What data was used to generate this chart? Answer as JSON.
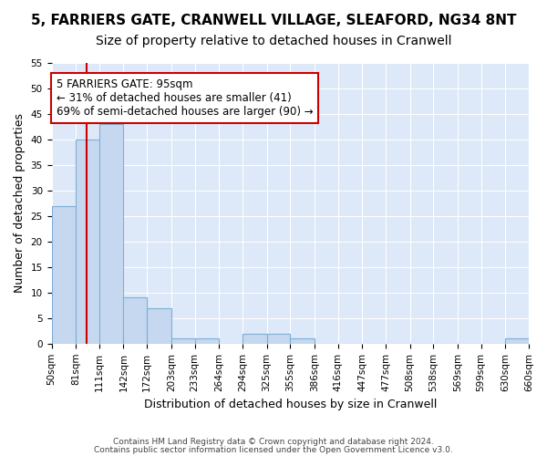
{
  "title1": "5, FARRIERS GATE, CRANWELL VILLAGE, SLEAFORD, NG34 8NT",
  "title2": "Size of property relative to detached houses in Cranwell",
  "xlabel": "Distribution of detached houses by size in Cranwell",
  "ylabel": "Number of detached properties",
  "footer1": "Contains HM Land Registry data © Crown copyright and database right 2024.",
  "footer2": "Contains public sector information licensed under the Open Government Licence v3.0.",
  "annotation_text": "5 FARRIERS GATE: 95sqm\n← 31% of detached houses are smaller (41)\n69% of semi-detached houses are larger (90) →",
  "bar_bins": [
    50,
    81,
    111,
    142,
    172,
    203,
    233,
    264,
    294,
    325,
    355,
    386,
    416,
    447,
    477,
    508,
    538,
    569,
    599,
    630,
    660
  ],
  "bar_heights": [
    27,
    40,
    43,
    9,
    7,
    1,
    1,
    0,
    2,
    2,
    1,
    0,
    0,
    0,
    0,
    0,
    0,
    0,
    0,
    1
  ],
  "bar_color": "#c5d8f0",
  "bar_edgecolor": "#7fafd4",
  "vline_x": 95,
  "vline_color": "#cc0000",
  "ylim": [
    0,
    55
  ],
  "yticks": [
    0,
    5,
    10,
    15,
    20,
    25,
    30,
    35,
    40,
    45,
    50,
    55
  ],
  "bg_color": "#dde8f8",
  "annotation_box_color": "#cc0000",
  "title1_fontsize": 11,
  "title2_fontsize": 10,
  "tick_label_fontsize": 7.5
}
